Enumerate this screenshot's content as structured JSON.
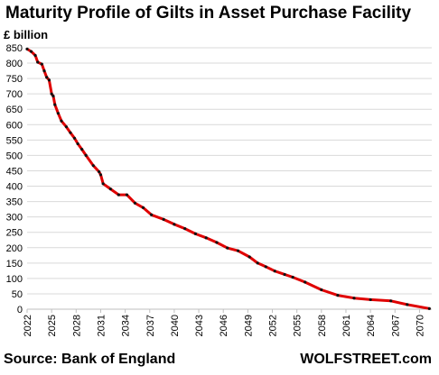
{
  "chart_data": {
    "type": "line",
    "title": "Maturity Profile of Gilts in Asset Purchase Facility",
    "ylabel": "£ billion",
    "xlabel": "",
    "x_ticks": [
      "2022",
      "2025",
      "2028",
      "2031",
      "2034",
      "2037",
      "2040",
      "2043",
      "2046",
      "2049",
      "2052",
      "2055",
      "2058",
      "2061",
      "2064",
      "2067",
      "2070"
    ],
    "y_ticks": [
      "0",
      "50",
      "100",
      "150",
      "200",
      "250",
      "300",
      "350",
      "400",
      "450",
      "500",
      "550",
      "600",
      "650",
      "700",
      "750",
      "800",
      "850"
    ],
    "xlim": [
      2022,
      2071.5
    ],
    "ylim": [
      0,
      850
    ],
    "grid": "horizontal",
    "line_color": "#e00000",
    "marker_color": "#111111",
    "series": [
      {
        "x": [
          2022.0,
          2022.5,
          2023.0,
          2023.3,
          2023.8,
          2024.1,
          2024.4,
          2024.7,
          2025.0,
          2025.2,
          2025.4,
          2025.8,
          2026.2,
          2026.8,
          2027.3,
          2027.8,
          2028.2,
          2028.7,
          2029.2,
          2030.1,
          2030.8,
          2031.0,
          2031.3,
          2032.2,
          2033.2,
          2034.2,
          2035.2,
          2036.2,
          2037.2,
          2038.7,
          2040.0,
          2041.3,
          2042.6,
          2043.9,
          2045.2,
          2046.5,
          2047.8,
          2049.2,
          2050.2,
          2051.2,
          2052.3,
          2053.5,
          2054.5,
          2056.0,
          2058.0,
          2060.0,
          2062.0,
          2064.0,
          2066.5,
          2068.5,
          2071.2
        ],
        "values": [
          846,
          838,
          825,
          803,
          797,
          775,
          754,
          745,
          700,
          693,
          665,
          637,
          612,
          593,
          574,
          556,
          538,
          520,
          500,
          467,
          447,
          437,
          408,
          391,
          372,
          372,
          345,
          330,
          307,
          292,
          276,
          262,
          245,
          232,
          217,
          199,
          190,
          170,
          150,
          138,
          124,
          113,
          104,
          88,
          63,
          45,
          36,
          31,
          27,
          15,
          2
        ]
      }
    ]
  },
  "source_text": "Source: Bank of England",
  "brand_text": "WOLFSTREET.com"
}
